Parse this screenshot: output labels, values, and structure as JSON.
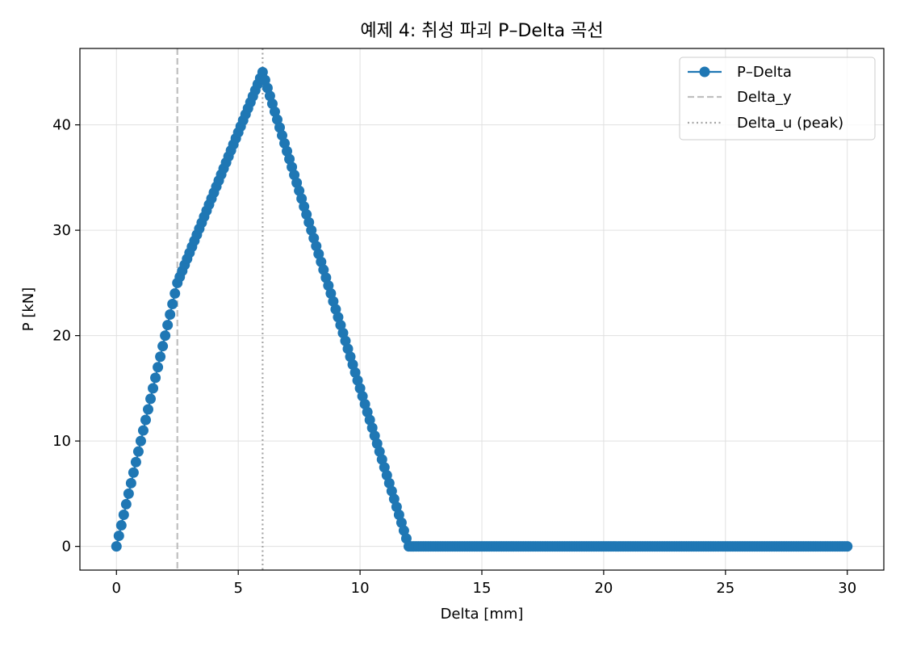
{
  "chart_data": {
    "type": "line",
    "title": "예제 4: 취성 파괴 P–Delta 곡선",
    "xlabel": "Delta [mm]",
    "ylabel": "P [kN]",
    "xlim": [
      -1.5,
      31.5
    ],
    "ylim": [
      -2.25,
      47.25
    ],
    "xticks": [
      0,
      5,
      10,
      15,
      20,
      25,
      30
    ],
    "yticks": [
      0,
      10,
      20,
      30,
      40
    ],
    "grid": true,
    "legend_position": "upper right",
    "series": [
      {
        "name": "P–Delta",
        "color": "#1f77b4",
        "style": "solid line with circle markers",
        "x": [
          0,
          2.5,
          6.0,
          12.0,
          30.0
        ],
        "y": [
          0,
          25,
          45,
          0,
          0
        ],
        "marker_step_mm": 0.1
      }
    ],
    "reference_lines": [
      {
        "name": "Delta_y",
        "x": 2.5,
        "style": "dashed",
        "color": "#bfbfbf"
      },
      {
        "name": "Delta_u (peak)",
        "x": 6.0,
        "style": "dotted",
        "color": "#a6a6a6"
      }
    ]
  }
}
